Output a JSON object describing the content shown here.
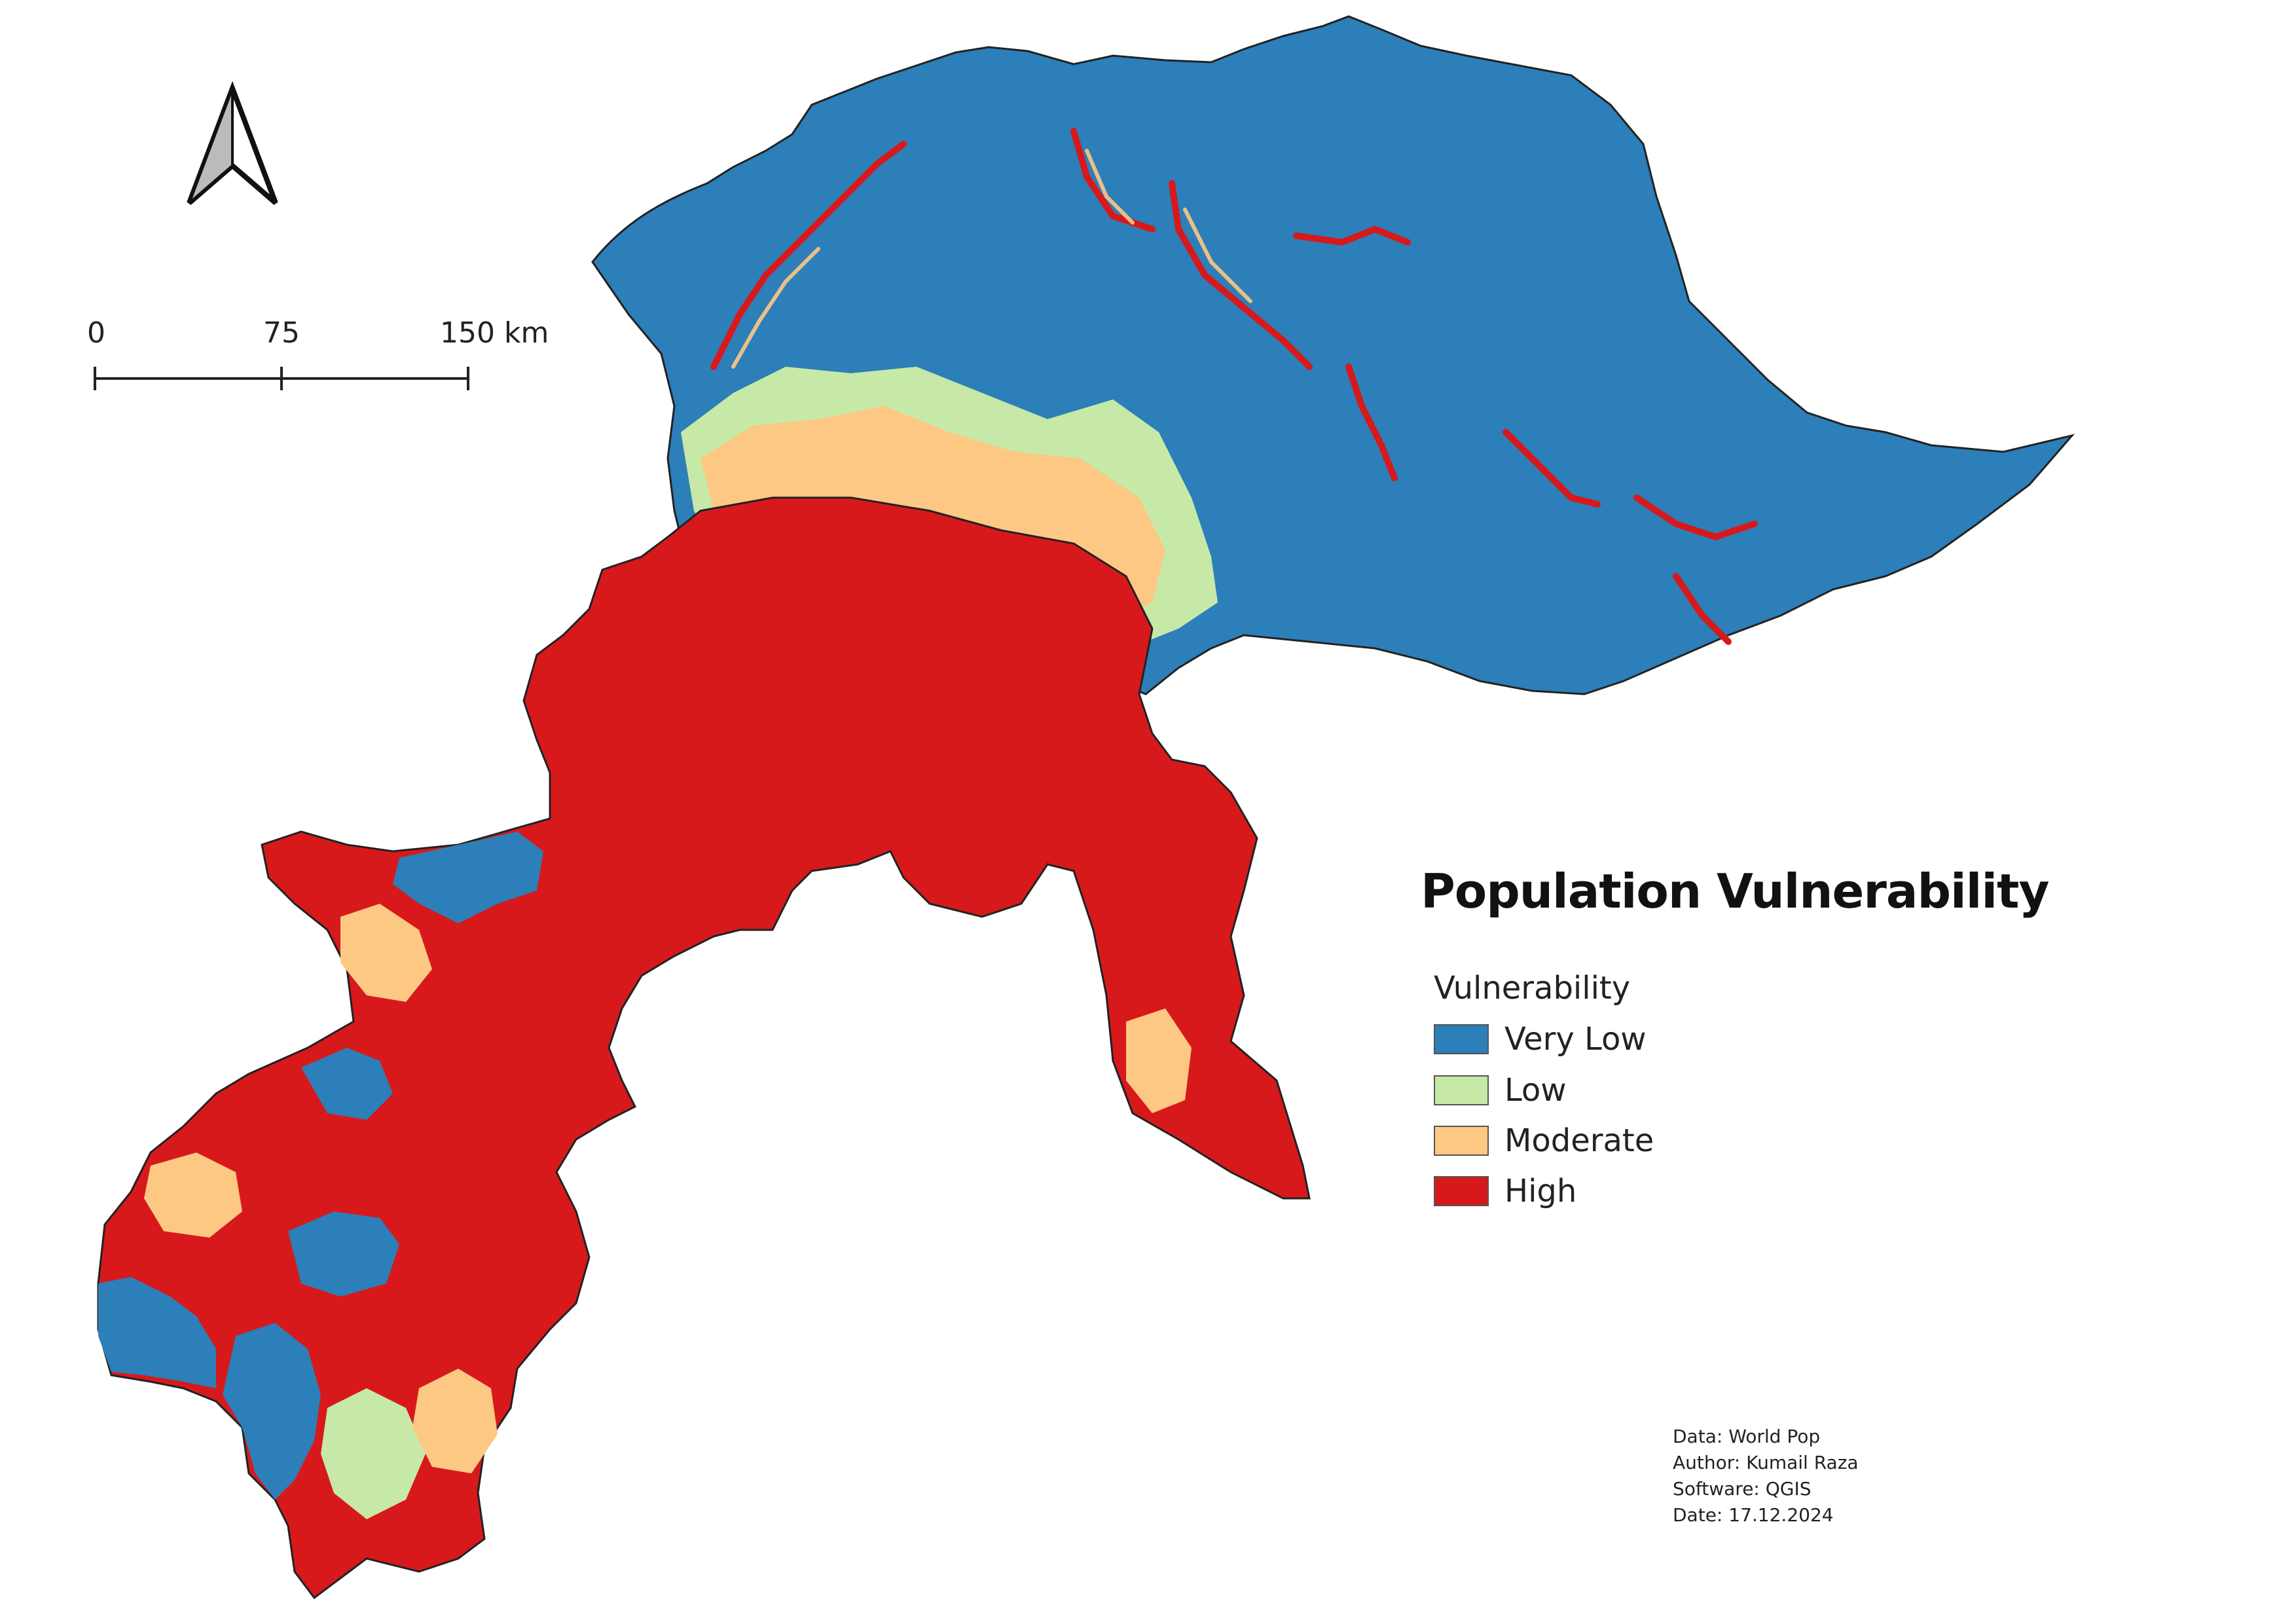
{
  "map": {
    "title": "Population Vulnerability",
    "legend": {
      "heading": "Vulnerability",
      "items": [
        {
          "label": "Very Low",
          "color": "#2c7fb8"
        },
        {
          "label": "Low",
          "color": "#c7e9a7"
        },
        {
          "label": "Moderate",
          "color": "#fdc883"
        },
        {
          "label": "High",
          "color": "#d7191c"
        }
      ]
    },
    "scale_bar": {
      "labels": [
        "0",
        "75",
        "150 km"
      ]
    },
    "north_arrow": "north-arrow-icon",
    "credits": {
      "data": "Data: World Pop",
      "author": "Author: Kumail Raza",
      "software": "Software: QGIS",
      "date": "Date: 17.12.2024"
    }
  }
}
